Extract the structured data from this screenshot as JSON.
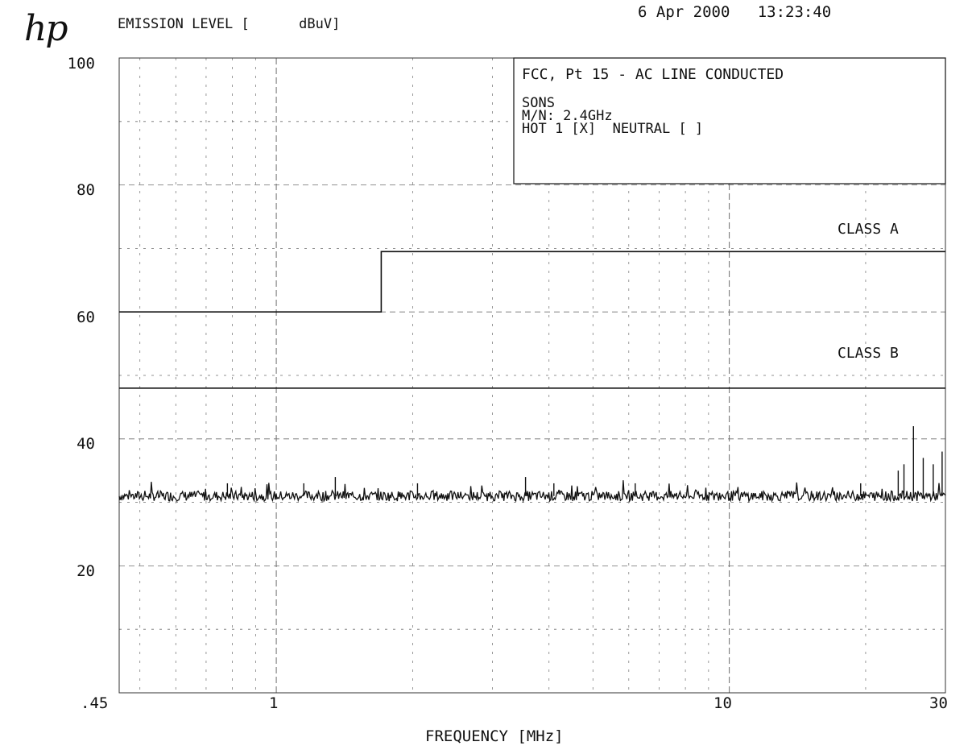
{
  "brand": "hp",
  "timestamp": "6 Apr 2000   13:23:40",
  "chart_data": {
    "type": "line",
    "ylabel": "EMISSION LEVEL [      dBuV]",
    "xlabel": "FREQUENCY [MHz]",
    "x_scale": "log",
    "xlim": [
      0.45,
      30
    ],
    "ylim": [
      0,
      100
    ],
    "x_tick_labels": [
      ".45",
      "1",
      "10",
      "30"
    ],
    "y_tick_labels": [
      "100",
      "80",
      "60",
      "40",
      "20"
    ],
    "grid": true,
    "info_box": {
      "title": "FCC, Pt 15 - AC LINE CONDUCTED",
      "line1": "SONS",
      "line2": "M/N: 2.4GHz",
      "line3": "HOT 1 [X]  NEUTRAL [ ]"
    },
    "limits": [
      {
        "name": "CLASS A",
        "segments": [
          {
            "x": [
              0.45,
              1.705
            ],
            "y": 60
          },
          {
            "x": [
              1.705,
              30
            ],
            "y": 69.5
          }
        ]
      },
      {
        "name": "CLASS B",
        "segments": [
          {
            "x": [
              0.45,
              30
            ],
            "y": 48
          }
        ]
      }
    ],
    "emission_baseline_dBuV": 31,
    "emission_peaks": [
      {
        "x": 0.78,
        "y": 33
      },
      {
        "x": 1.15,
        "y": 33
      },
      {
        "x": 1.35,
        "y": 34
      },
      {
        "x": 2.05,
        "y": 33
      },
      {
        "x": 3.55,
        "y": 34
      },
      {
        "x": 4.1,
        "y": 33
      },
      {
        "x": 6.2,
        "y": 33
      },
      {
        "x": 19.5,
        "y": 33
      },
      {
        "x": 23.6,
        "y": 35
      },
      {
        "x": 24.3,
        "y": 36
      },
      {
        "x": 25.5,
        "y": 42
      },
      {
        "x": 26.8,
        "y": 37
      },
      {
        "x": 28.2,
        "y": 36
      },
      {
        "x": 29.5,
        "y": 38
      }
    ],
    "colors": {
      "trace": "#111111",
      "grid": "#6d6d6d",
      "background": "#ffffff"
    }
  }
}
